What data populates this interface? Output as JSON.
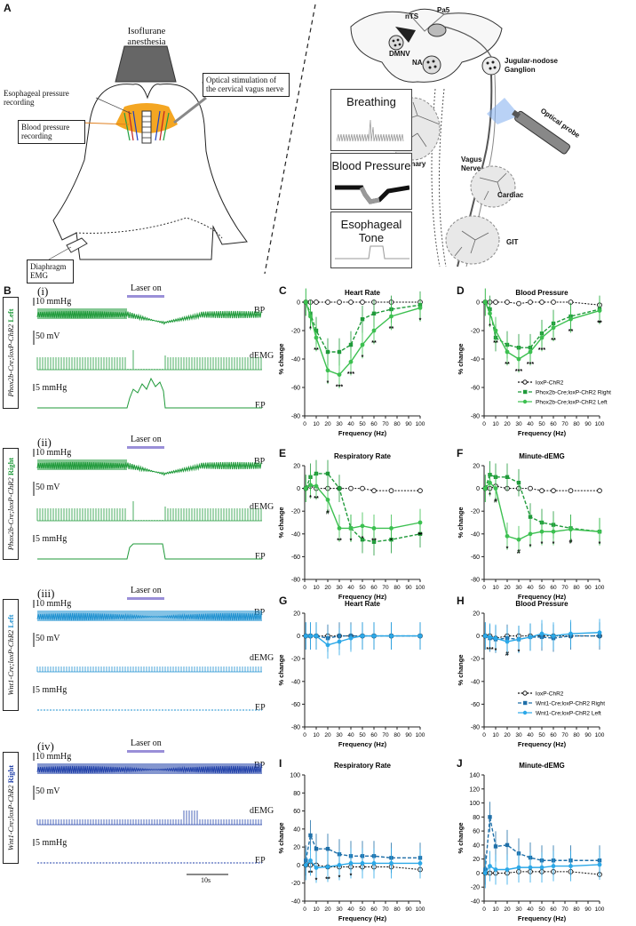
{
  "panel_labels": {
    "A": "A",
    "B": "B",
    "C": "C",
    "D": "D",
    "E": "E",
    "F": "F",
    "G": "G",
    "H": "H",
    "I": "I",
    "J": "J"
  },
  "panelA": {
    "anesthesia": "Isoflurane anesthesia",
    "esophageal_recording": "Esophageal pressure recording",
    "bp_recording": "Blood pressure recording",
    "optical_stim": "Optical stimulation of the cervical vagus nerve",
    "diaphragm": "Diaphragm EMG",
    "nuclei": {
      "nts": "nTS",
      "pa5": "Pa5",
      "dmnv": "DMNV",
      "na": "NA"
    },
    "ganglion": "Jugular-nodose Ganglion",
    "optical_probe": "Optical probe",
    "pulmonary": "Pulmonary",
    "vagus": "Vagus Nerve",
    "cardiac": "Cardiac",
    "git": "GIT",
    "rec_breathing": "Breathing",
    "rec_bp": "Blood Pressure",
    "rec_esoph": "Esophageal Tone"
  },
  "panelB": {
    "laser_on": "Laser on",
    "bp": "BP",
    "demg": "dEMG",
    "ep": "EP",
    "scale_10": "10 mmHg",
    "scale_50": "50 mV",
    "scale_5": "5 mmHg",
    "time_scale": "10s",
    "rows": [
      {
        "roman": "(i)",
        "genotype": "Phox2b-Cre;loxP-ChR2",
        "side": "Left",
        "color": "#1f9a3a"
      },
      {
        "roman": "(ii)",
        "genotype": "Phox2b-Cre;loxP-ChR2",
        "side": "Right",
        "color": "#1f9a3a"
      },
      {
        "roman": "(iii)",
        "genotype": "Wnt1-Cre;loxP-ChR2",
        "side": "Left",
        "color": "#1e90d0"
      },
      {
        "roman": "(iv)",
        "genotype": "Wnt1-Cre;loxP-ChR2",
        "side": "Right",
        "color": "#1f3fa8"
      }
    ]
  },
  "legends": {
    "phox": [
      "loxP-ChR2",
      "Phox2b-Cre;loxP-ChR2 Right",
      "Phox2b-Cre;loxP-ChR2 Left"
    ],
    "wnt": [
      "loxP-ChR2",
      "Wnt1-Cre;loxP-ChR2 Right",
      "Wnt1-Cre;loxP-ChR2 Left"
    ]
  },
  "chart_data": [
    {
      "id": "C",
      "type": "line",
      "title": "Heart Rate",
      "xlabel": "Frequency (Hz)",
      "ylabel": "% change",
      "ylim": [
        -80,
        0
      ],
      "yticks": [
        -80,
        -60,
        -40,
        -20,
        0
      ],
      "x": [
        1,
        5,
        10,
        20,
        30,
        40,
        50,
        60,
        75,
        100
      ],
      "series": [
        {
          "name": "loxP-ChR2",
          "values": [
            0,
            0,
            0,
            0,
            0,
            0,
            0,
            0,
            0,
            0
          ]
        },
        {
          "name": "Phox2b-Cre;loxP-ChR2 Right",
          "values": [
            0,
            -8,
            -20,
            -35,
            -35,
            -30,
            -12,
            -8,
            -5,
            -2
          ]
        },
        {
          "name": "Phox2b-Cre;loxP-ChR2 Left",
          "values": [
            0,
            -10,
            -25,
            -48,
            -51,
            -42,
            -30,
            -20,
            -10,
            -4
          ]
        }
      ],
      "stars": [
        "*",
        "**",
        "*",
        "***",
        "***",
        "*",
        "**",
        "**",
        "*"
      ]
    },
    {
      "id": "D",
      "type": "line",
      "title": "Blood Pressure",
      "xlabel": "Frequency (Hz)",
      "ylabel": "% change",
      "ylim": [
        -80,
        0
      ],
      "yticks": [
        -80,
        -60,
        -40,
        -20,
        0
      ],
      "x": [
        1,
        5,
        10,
        20,
        30,
        40,
        50,
        60,
        75,
        100
      ],
      "series": [
        {
          "name": "loxP-ChR2",
          "values": [
            0,
            0,
            0,
            0,
            -1,
            0,
            0,
            0,
            0,
            -2
          ]
        },
        {
          "name": "Phox2b-Cre;loxP-ChR2 Right",
          "values": [
            0,
            -5,
            -25,
            -30,
            -32,
            -32,
            -22,
            -15,
            -10,
            -5
          ]
        },
        {
          "name": "Phox2b-Cre;loxP-ChR2 Left",
          "values": [
            0,
            -8,
            -20,
            -35,
            -40,
            -35,
            -25,
            -18,
            -12,
            -6
          ]
        }
      ],
      "stars": [
        "*",
        "**",
        "**",
        "***",
        "***",
        "***",
        "**",
        "**",
        "**",
        "*"
      ]
    },
    {
      "id": "E",
      "type": "line",
      "title": "Respiratory Rate",
      "xlabel": "Frequency (Hz)",
      "ylabel": "% change",
      "ylim": [
        -80,
        20
      ],
      "yticks": [
        -80,
        -60,
        -40,
        -20,
        0,
        20
      ],
      "x": [
        1,
        5,
        10,
        20,
        30,
        40,
        50,
        60,
        75,
        100
      ],
      "series": [
        {
          "name": "loxP-ChR2",
          "values": [
            0,
            2,
            0,
            0,
            0,
            0,
            0,
            -2,
            -2,
            -2
          ]
        },
        {
          "name": "Phox2b-Cre;loxP-ChR2 Right",
          "values": [
            0,
            10,
            13,
            13,
            0,
            -35,
            -45,
            -47,
            -45,
            -40
          ]
        },
        {
          "name": "Phox2b-Cre;loxP-ChR2 Left",
          "values": [
            0,
            3,
            2,
            -10,
            -35,
            -35,
            -33,
            -35,
            -35,
            -30
          ]
        }
      ],
      "stars": [
        "*",
        "**",
        "#",
        "**",
        "*",
        "*",
        "**",
        "*",
        "**",
        "*"
      ]
    },
    {
      "id": "F",
      "type": "line",
      "title": "Minute-dEMG",
      "xlabel": "Frequency (Hz)",
      "ylabel": "% change",
      "ylim": [
        -80,
        20
      ],
      "yticks": [
        -80,
        -60,
        -40,
        -20,
        0,
        20
      ],
      "x": [
        1,
        5,
        10,
        20,
        30,
        40,
        50,
        60,
        75,
        100
      ],
      "series": [
        {
          "name": "loxP-ChR2",
          "values": [
            0,
            0,
            2,
            0,
            0,
            0,
            -2,
            -2,
            -2,
            -2
          ]
        },
        {
          "name": "Phox2b-Cre;loxP-ChR2 Right",
          "values": [
            0,
            12,
            10,
            10,
            5,
            -25,
            -30,
            -32,
            -35,
            -38
          ]
        },
        {
          "name": "Phox2b-Cre;loxP-ChR2 Left",
          "values": [
            0,
            5,
            0,
            -42,
            -45,
            -40,
            -38,
            -38,
            -36,
            -38
          ]
        }
      ],
      "stars": [
        "*",
        "#",
        "*",
        "#",
        "*",
        "*",
        "*",
        "#",
        "*"
      ]
    },
    {
      "id": "G",
      "type": "line",
      "title": "Heart Rate",
      "xlabel": "Frequency (Hz)",
      "ylabel": "% change",
      "ylim": [
        -80,
        20
      ],
      "yticks": [
        -80,
        -60,
        -40,
        -20,
        0,
        20
      ],
      "x": [
        1,
        5,
        10,
        20,
        30,
        40,
        50,
        60,
        75,
        100
      ],
      "series": [
        {
          "name": "loxP-ChR2",
          "values": [
            0,
            0,
            0,
            0,
            0,
            0,
            0,
            0,
            0,
            0
          ]
        },
        {
          "name": "Wnt1-Cre;loxP-ChR2 Right",
          "values": [
            0,
            0,
            0,
            -2,
            0,
            0,
            0,
            0,
            0,
            0
          ]
        },
        {
          "name": "Wnt1-Cre;loxP-ChR2 Left",
          "values": [
            0,
            0,
            0,
            -8,
            -5,
            -2,
            0,
            0,
            0,
            0
          ]
        }
      ],
      "stars": []
    },
    {
      "id": "H",
      "type": "line",
      "title": "Blood Pressure",
      "xlabel": "Frequency (Hz)",
      "ylabel": "% change",
      "ylim": [
        -80,
        20
      ],
      "yticks": [
        -80,
        -60,
        -40,
        -20,
        0,
        20
      ],
      "x": [
        1,
        5,
        10,
        20,
        30,
        40,
        50,
        60,
        75,
        100
      ],
      "series": [
        {
          "name": "loxP-ChR2",
          "values": [
            0,
            0,
            -2,
            0,
            0,
            0,
            0,
            0,
            0,
            0
          ]
        },
        {
          "name": "Wnt1-Cre;loxP-ChR2 Right",
          "values": [
            0,
            -2,
            -3,
            -2,
            -3,
            -1,
            -1,
            -2,
            0,
            0
          ]
        },
        {
          "name": "Wnt1-Cre;loxP-ChR2 Left",
          "values": [
            0,
            -1,
            -2,
            -5,
            -3,
            -1,
            2,
            0,
            2,
            3
          ]
        }
      ],
      "stars": [
        "***",
        "*",
        "#",
        "*"
      ]
    },
    {
      "id": "I",
      "type": "line",
      "title": "Respiratory Rate",
      "xlabel": "Frequency (Hz)",
      "ylabel": "% change",
      "ylim": [
        -40,
        100
      ],
      "yticks": [
        -40,
        -20,
        0,
        20,
        40,
        60,
        80,
        100
      ],
      "x": [
        1,
        5,
        10,
        20,
        30,
        40,
        50,
        60,
        75,
        100
      ],
      "series": [
        {
          "name": "loxP-ChR2",
          "values": [
            0,
            0,
            0,
            -2,
            -2,
            -2,
            -2,
            -2,
            -2,
            -5
          ]
        },
        {
          "name": "Wnt1-Cre;loxP-ChR2 Right",
          "values": [
            5,
            33,
            18,
            18,
            12,
            10,
            10,
            10,
            8,
            8
          ]
        },
        {
          "name": "Wnt1-Cre;loxP-ChR2 Left",
          "values": [
            0,
            5,
            -3,
            -2,
            0,
            2,
            2,
            2,
            2,
            2
          ]
        }
      ],
      "stars": [
        "**",
        "*",
        "**",
        "*",
        "*"
      ]
    },
    {
      "id": "J",
      "type": "line",
      "title": "Minute-dEMG",
      "xlabel": "Frequency (Hz)",
      "ylabel": "% change",
      "ylim": [
        -40,
        140
      ],
      "yticks": [
        -40,
        -20,
        0,
        20,
        40,
        60,
        80,
        100,
        120,
        140
      ],
      "x": [
        1,
        5,
        10,
        20,
        30,
        40,
        50,
        60,
        75,
        100
      ],
      "series": [
        {
          "name": "loxP-ChR2",
          "values": [
            0,
            0,
            0,
            0,
            2,
            2,
            2,
            2,
            2,
            -2
          ]
        },
        {
          "name": "Wnt1-Cre;loxP-ChR2 Right",
          "values": [
            5,
            80,
            38,
            40,
            28,
            22,
            18,
            18,
            18,
            18
          ]
        },
        {
          "name": "Wnt1-Cre;loxP-ChR2 Left",
          "values": [
            0,
            10,
            5,
            5,
            8,
            8,
            8,
            10,
            10,
            12
          ]
        }
      ],
      "stars": []
    }
  ]
}
